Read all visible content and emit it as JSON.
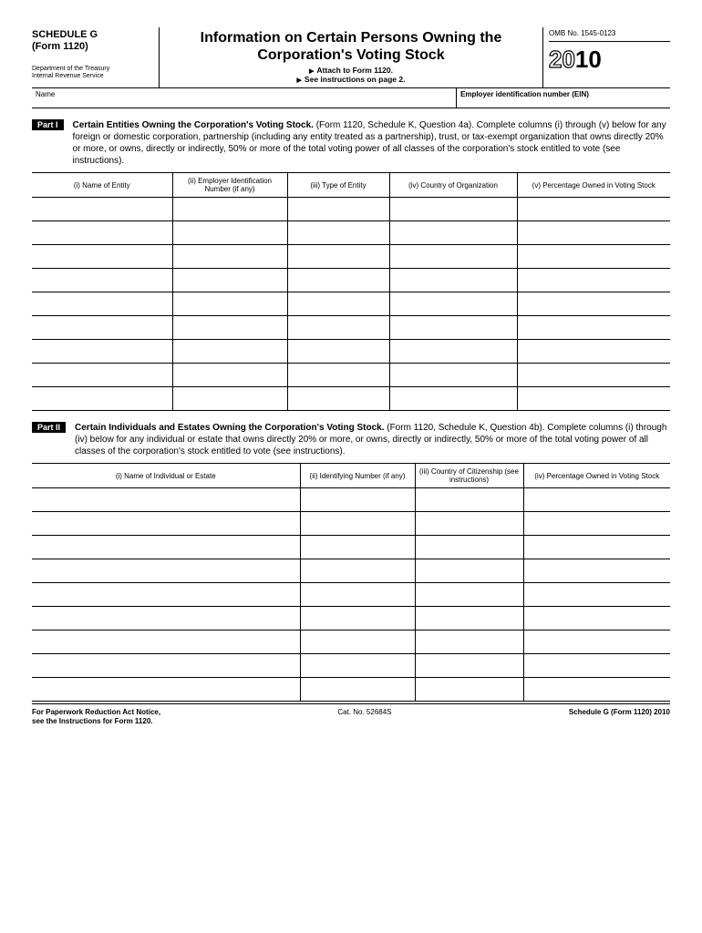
{
  "header": {
    "schedule": "SCHEDULE G",
    "form": "(Form 1120)",
    "dept1": "Department of the Treasury",
    "dept2": "Internal Revenue Service",
    "title": "Information on Certain Persons Owning the Corporation's Voting Stock",
    "attach": "Attach to Form 1120.",
    "see": "See instructions on page 2.",
    "omb": "OMB No. 1545-0123",
    "year_outline": "20",
    "year_solid": "10"
  },
  "name_row": {
    "name_label": "Name",
    "ein_label": "Employer identification number (EIN)"
  },
  "part1": {
    "label": "Part I",
    "title_bold": "Certain Entities Owning the Corporation's Voting Stock.",
    "title_rest": " (Form 1120, Schedule K, Question 4a). Complete columns (i) through (v) below for any foreign or domestic corporation, partnership (including any entity treated as a partnership), trust, or tax-exempt organization that owns directly 20% or more, or owns, directly or indirectly, 50% or more of the total voting power of all classes of the corporation's stock entitled to vote (see instructions).",
    "columns": [
      "(i) Name of Entity",
      "(ii) Employer Identification Number (if any)",
      "(iii) Type of Entity",
      "(iv) Country of Organization",
      "(v) Percentage Owned in Voting Stock"
    ],
    "row_count": 9
  },
  "part2": {
    "label": "Part II",
    "title_bold": "Certain Individuals and Estates Owning the Corporation's Voting Stock.",
    "title_rest": " (Form 1120, Schedule K, Question 4b). Complete columns (i) through (iv) below for any individual or estate that owns directly 20% or more, or owns, directly or indirectly, 50% or more of the total voting power of all classes of the corporation's stock entitled to vote (see instructions).",
    "columns": [
      "(i) Name of Individual or Estate",
      "(ii) Identifying Number (if any)",
      "(iii) Country of Citizenship (see instructions)",
      "(iv) Percentage Owned in Voting Stock"
    ],
    "row_count": 9
  },
  "footer": {
    "left1": "For Paperwork Reduction Act Notice,",
    "left2": "see the Instructions for Form 1120.",
    "center": "Cat. No. 52684S",
    "right": "Schedule G (Form 1120) 2010"
  }
}
